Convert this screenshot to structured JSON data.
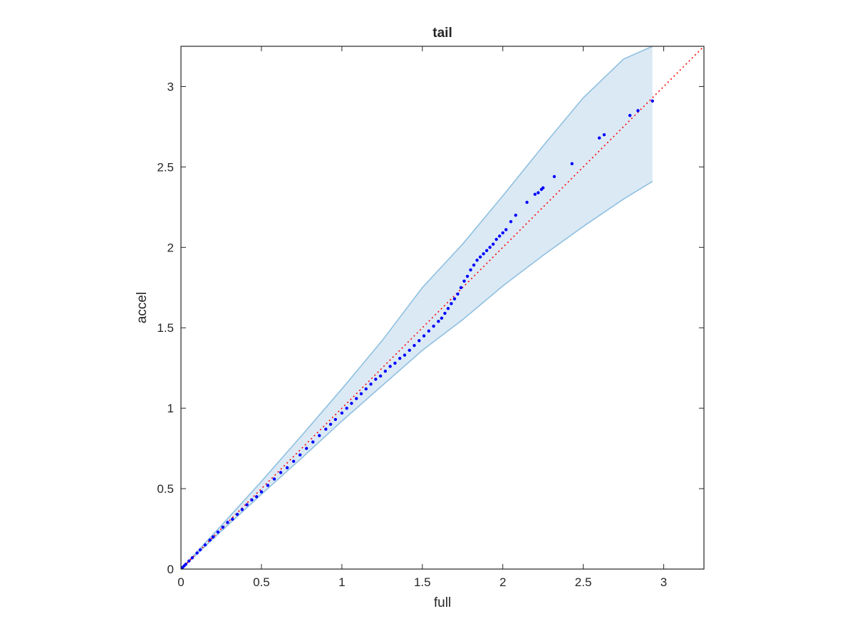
{
  "chart_data": {
    "type": "scatter",
    "title": "tail",
    "xlabel": "full",
    "ylabel": "accel",
    "xlim": [
      0,
      3.25
    ],
    "ylim": [
      0,
      3.25
    ],
    "xticks": [
      "0",
      "0.5",
      "1",
      "1.5",
      "2",
      "2.5",
      "3"
    ],
    "yticks": [
      "0",
      "0.5",
      "1",
      "1.5",
      "2",
      "2.5",
      "3"
    ],
    "grid": false,
    "reference_line": {
      "style": "dotted",
      "color": "#ff0000",
      "from": [
        0,
        0
      ],
      "to": [
        3.25,
        3.25
      ]
    },
    "confidence_band": {
      "x": [
        0,
        0.25,
        0.5,
        0.75,
        1.0,
        1.25,
        1.5,
        1.75,
        2.0,
        2.25,
        2.5,
        2.75,
        2.93
      ],
      "upper": [
        0,
        0.27,
        0.545,
        0.83,
        1.12,
        1.42,
        1.75,
        2.02,
        2.32,
        2.63,
        2.93,
        3.17,
        3.25
      ],
      "lower": [
        0,
        0.235,
        0.465,
        0.69,
        0.92,
        1.14,
        1.36,
        1.55,
        1.76,
        1.95,
        2.13,
        2.3,
        2.41
      ],
      "fill": "#dbe9f5",
      "edge": "#8fc0e0"
    },
    "points": {
      "color": "#0000ff",
      "x": [
        0.0,
        0.01,
        0.02,
        0.03,
        0.05,
        0.07,
        0.1,
        0.12,
        0.15,
        0.18,
        0.2,
        0.23,
        0.26,
        0.29,
        0.32,
        0.35,
        0.38,
        0.41,
        0.44,
        0.47,
        0.5,
        0.54,
        0.58,
        0.62,
        0.66,
        0.7,
        0.74,
        0.78,
        0.82,
        0.86,
        0.9,
        0.93,
        0.96,
        1.0,
        1.03,
        1.06,
        1.09,
        1.12,
        1.15,
        1.18,
        1.21,
        1.24,
        1.27,
        1.3,
        1.33,
        1.36,
        1.39,
        1.42,
        1.45,
        1.48,
        1.51,
        1.54,
        1.57,
        1.6,
        1.62,
        1.64,
        1.66,
        1.68,
        1.7,
        1.72,
        1.74,
        1.76,
        1.78,
        1.8,
        1.82,
        1.84,
        1.86,
        1.88,
        1.9,
        1.92,
        1.94,
        1.96,
        1.98,
        2.0,
        2.02,
        2.05,
        2.08,
        2.15,
        2.2,
        2.22,
        2.24,
        2.25,
        2.32,
        2.43,
        2.6,
        2.63,
        2.79,
        2.84,
        2.93
      ],
      "y": [
        0.0,
        0.01,
        0.02,
        0.03,
        0.05,
        0.07,
        0.1,
        0.12,
        0.15,
        0.18,
        0.2,
        0.23,
        0.26,
        0.29,
        0.31,
        0.34,
        0.37,
        0.4,
        0.43,
        0.45,
        0.48,
        0.52,
        0.56,
        0.6,
        0.63,
        0.67,
        0.71,
        0.75,
        0.79,
        0.83,
        0.87,
        0.9,
        0.93,
        0.97,
        1.0,
        1.03,
        1.06,
        1.09,
        1.12,
        1.15,
        1.18,
        1.2,
        1.23,
        1.26,
        1.28,
        1.31,
        1.33,
        1.36,
        1.39,
        1.42,
        1.45,
        1.48,
        1.51,
        1.54,
        1.56,
        1.59,
        1.62,
        1.65,
        1.68,
        1.71,
        1.75,
        1.79,
        1.82,
        1.86,
        1.89,
        1.92,
        1.94,
        1.96,
        1.98,
        2.0,
        2.02,
        2.05,
        2.07,
        2.09,
        2.11,
        2.16,
        2.2,
        2.28,
        2.33,
        2.34,
        2.36,
        2.37,
        2.44,
        2.52,
        2.68,
        2.7,
        2.82,
        2.85,
        2.91
      ]
    }
  }
}
